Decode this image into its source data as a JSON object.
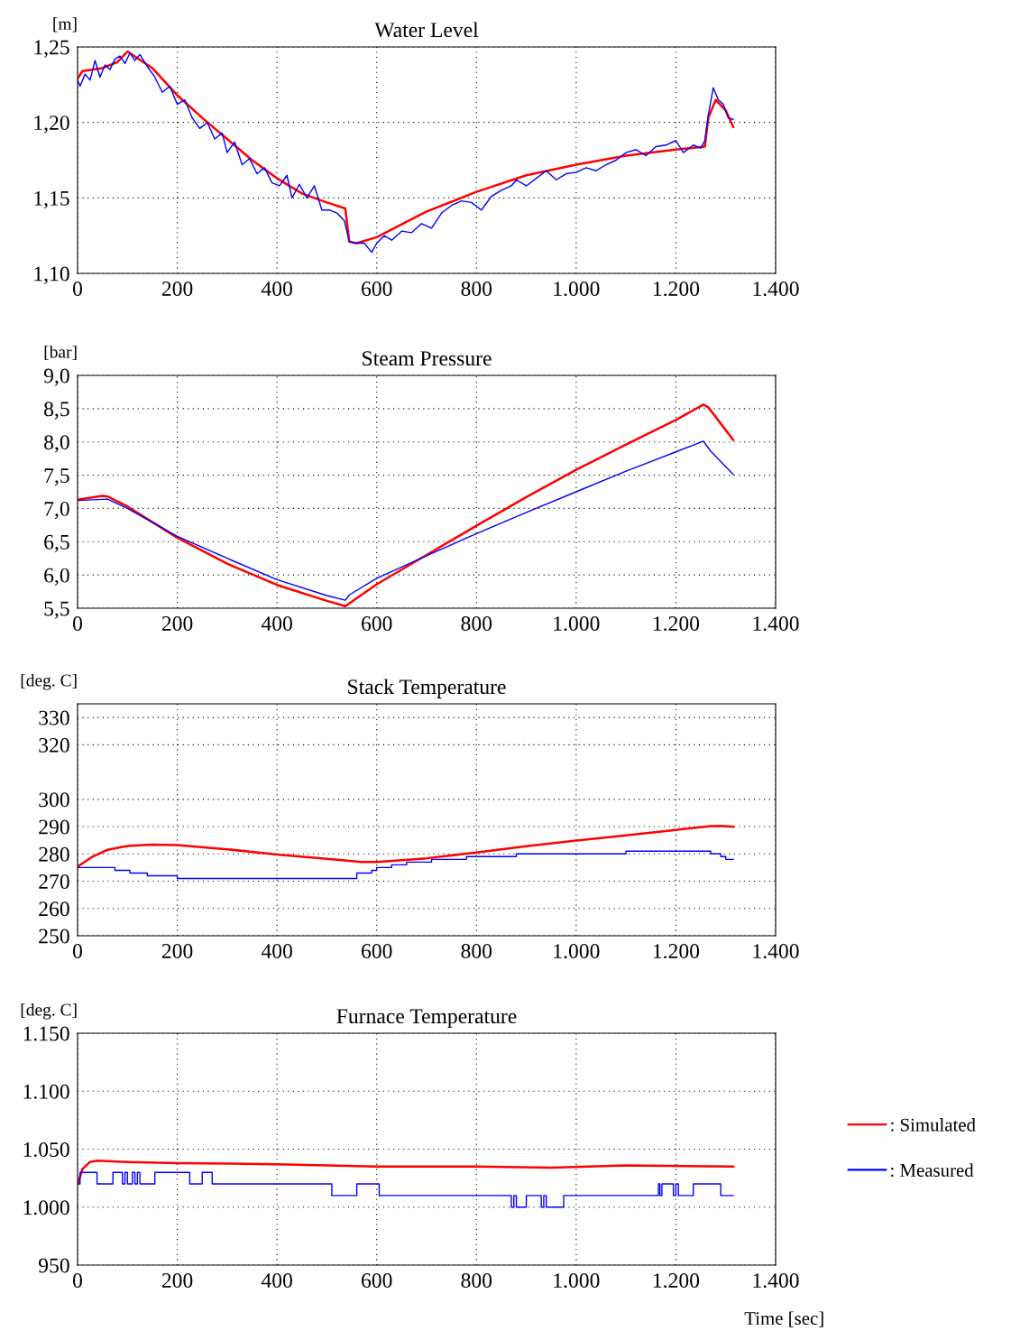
{
  "chart_data": [
    {
      "type": "line",
      "title": "Water Level",
      "ylabel": "[m]",
      "xlim": [
        0,
        1400
      ],
      "ylim": [
        1.1,
        1.25
      ],
      "grid": true,
      "line_style": "solid",
      "xticks": [
        0,
        200,
        400,
        600,
        800,
        {
          "value": 1000,
          "label": "1.000"
        },
        {
          "value": 1200,
          "label": "1.200"
        },
        {
          "value": 1400,
          "label": "1.400"
        }
      ],
      "yticks": [
        {
          "value": 1.1,
          "label": "1,10"
        },
        {
          "value": 1.15,
          "label": "1,15"
        },
        {
          "value": 1.2,
          "label": "1,20"
        },
        {
          "value": 1.25,
          "label": "1,25"
        }
      ],
      "series": [
        {
          "color": "#ff0000",
          "x": [
            0,
            10,
            50,
            80,
            100,
            150,
            200,
            250,
            300,
            350,
            400,
            450,
            500,
            537,
            545,
            560,
            600,
            700,
            800,
            900,
            1000,
            1100,
            1200,
            1258,
            1265,
            1280,
            1300,
            1315
          ],
          "values": [
            1.229,
            1.234,
            1.236,
            1.24,
            1.247,
            1.236,
            1.218,
            1.203,
            1.189,
            1.175,
            1.163,
            1.153,
            1.147,
            1.143,
            1.121,
            1.12,
            1.124,
            1.141,
            1.154,
            1.165,
            1.172,
            1.178,
            1.182,
            1.184,
            1.203,
            1.215,
            1.208,
            1.197
          ]
        },
        {
          "color": "#0000ff",
          "x": [
            0,
            5,
            15,
            25,
            35,
            45,
            55,
            65,
            75,
            85,
            95,
            105,
            115,
            125,
            140,
            155,
            170,
            185,
            200,
            215,
            230,
            245,
            260,
            275,
            290,
            300,
            315,
            330,
            345,
            360,
            375,
            390,
            405,
            420,
            430,
            445,
            460,
            475,
            490,
            505,
            520,
            535,
            545,
            560,
            575,
            590,
            600,
            615,
            630,
            650,
            670,
            690,
            710,
            730,
            750,
            770,
            790,
            810,
            830,
            850,
            870,
            880,
            900,
            920,
            940,
            960,
            980,
            1000,
            1020,
            1040,
            1060,
            1080,
            1100,
            1120,
            1140,
            1160,
            1180,
            1200,
            1215,
            1235,
            1250,
            1258,
            1265,
            1275,
            1285,
            1295,
            1305,
            1315
          ],
          "values": [
            1.228,
            1.224,
            1.232,
            1.228,
            1.241,
            1.23,
            1.238,
            1.235,
            1.242,
            1.244,
            1.239,
            1.246,
            1.241,
            1.245,
            1.237,
            1.23,
            1.22,
            1.224,
            1.212,
            1.215,
            1.203,
            1.196,
            1.2,
            1.189,
            1.193,
            1.18,
            1.187,
            1.172,
            1.176,
            1.166,
            1.17,
            1.16,
            1.158,
            1.165,
            1.15,
            1.159,
            1.15,
            1.158,
            1.142,
            1.142,
            1.14,
            1.135,
            1.121,
            1.12,
            1.12,
            1.114,
            1.12,
            1.125,
            1.122,
            1.128,
            1.127,
            1.133,
            1.13,
            1.14,
            1.145,
            1.148,
            1.147,
            1.142,
            1.151,
            1.155,
            1.158,
            1.162,
            1.158,
            1.163,
            1.168,
            1.162,
            1.166,
            1.167,
            1.17,
            1.168,
            1.172,
            1.175,
            1.18,
            1.182,
            1.178,
            1.184,
            1.185,
            1.188,
            1.18,
            1.185,
            1.183,
            1.188,
            1.205,
            1.223,
            1.215,
            1.212,
            1.203,
            1.202
          ]
        }
      ]
    },
    {
      "type": "line",
      "title": "Steam Pressure",
      "ylabel": "[bar]",
      "xlim": [
        0,
        1400
      ],
      "ylim": [
        5.5,
        9.0
      ],
      "grid": true,
      "line_style": "solid",
      "xticks": [
        0,
        200,
        400,
        600,
        800,
        {
          "value": 1000,
          "label": "1.000"
        },
        {
          "value": 1200,
          "label": "1.200"
        },
        {
          "value": 1400,
          "label": "1.400"
        }
      ],
      "yticks": [
        {
          "value": 5.5,
          "label": "5,5"
        },
        {
          "value": 6.0,
          "label": "6,0"
        },
        {
          "value": 6.5,
          "label": "6,5"
        },
        {
          "value": 7.0,
          "label": "7,0"
        },
        {
          "value": 7.5,
          "label": "7,5"
        },
        {
          "value": 8.0,
          "label": "8,0"
        },
        {
          "value": 8.5,
          "label": "8,5"
        },
        {
          "value": 9.0,
          "label": "9,0"
        }
      ],
      "series": [
        {
          "color": "#ff0000",
          "x": [
            0,
            50,
            60,
            100,
            200,
            300,
            400,
            500,
            537,
            600,
            700,
            800,
            900,
            1000,
            1100,
            1200,
            1255,
            1265,
            1315
          ],
          "values": [
            7.13,
            7.19,
            7.18,
            7.03,
            6.56,
            6.17,
            5.85,
            5.61,
            5.53,
            5.86,
            6.3,
            6.74,
            7.17,
            7.58,
            7.96,
            8.33,
            8.56,
            8.52,
            8.03
          ]
        },
        {
          "color": "#0000ff",
          "x": [
            0,
            60,
            100,
            200,
            300,
            400,
            500,
            537,
            545,
            600,
            700,
            800,
            900,
            1000,
            1100,
            1200,
            1255,
            1270,
            1315
          ],
          "values": [
            7.12,
            7.14,
            7.0,
            6.58,
            6.25,
            5.93,
            5.69,
            5.62,
            5.7,
            5.95,
            6.29,
            6.62,
            6.94,
            7.25,
            7.56,
            7.85,
            8.01,
            7.86,
            7.51
          ]
        }
      ]
    },
    {
      "type": "line",
      "title": "Stack Temperature",
      "ylabel": "[deg. C]",
      "xlim": [
        0,
        1400
      ],
      "ylim": [
        250,
        335
      ],
      "grid": true,
      "line_style": "solid",
      "xticks": [
        0,
        200,
        400,
        600,
        800,
        {
          "value": 1000,
          "label": "1.000"
        },
        {
          "value": 1200,
          "label": "1.200"
        },
        {
          "value": 1400,
          "label": "1.400"
        }
      ],
      "yticks": [
        250,
        260,
        270,
        280,
        290,
        300,
        320,
        330
      ],
      "series": [
        {
          "color": "#ff0000",
          "x": [
            0,
            30,
            60,
            100,
            150,
            200,
            300,
            400,
            500,
            570,
            600,
            700,
            800,
            900,
            1000,
            1100,
            1200,
            1270,
            1290,
            1315
          ],
          "values": [
            275.3,
            279,
            281.5,
            282.9,
            283.4,
            283.2,
            281.7,
            279.8,
            278.2,
            277.0,
            277.0,
            278.4,
            280.5,
            282.8,
            284.9,
            286.8,
            288.8,
            290.2,
            290.3,
            290.0
          ]
        },
        {
          "color": "#0000ff",
          "type": "step",
          "x": [
            0,
            75,
            105,
            140,
            200,
            560,
            590,
            600,
            630,
            660,
            710,
            780,
            880,
            1100,
            1270,
            1290,
            1300,
            1315
          ],
          "values": [
            275,
            274,
            273,
            272,
            271,
            273,
            274,
            275,
            276,
            277,
            278,
            279,
            280,
            281,
            280,
            279,
            278,
            278
          ]
        }
      ]
    },
    {
      "type": "line",
      "title": "Furnace Temperature",
      "ylabel": "[deg. C]",
      "xlabel": "Time [sec]",
      "xlim": [
        0,
        1400
      ],
      "ylim": [
        950,
        1150
      ],
      "grid": true,
      "line_style": "solid",
      "legend": "right",
      "xticks": [
        0,
        200,
        400,
        600,
        800,
        {
          "value": 1000,
          "label": "1.000"
        },
        {
          "value": 1200,
          "label": "1.200"
        },
        {
          "value": 1400,
          "label": "1.400"
        }
      ],
      "yticks": [
        950,
        {
          "value": 1000,
          "label": "1.000"
        },
        {
          "value": 1050,
          "label": "1.050"
        },
        {
          "value": 1100,
          "label": "1.100"
        },
        {
          "value": 1150,
          "label": "1.150"
        }
      ],
      "series": [
        {
          "name": ": Simulated",
          "color": "#ff0000",
          "x": [
            0,
            10,
            25,
            40,
            100,
            200,
            400,
            600,
            800,
            950,
            1100,
            1315
          ],
          "values": [
            1020,
            1033,
            1039,
            1040,
            1039,
            1038,
            1037,
            1035,
            1035,
            1034,
            1036,
            1035
          ]
        },
        {
          "name": ": Measured",
          "color": "#0000ff",
          "type": "step",
          "x": [
            0,
            5,
            39,
            71,
            90,
            95,
            100,
            110,
            115,
            120,
            125,
            155,
            225,
            250,
            270,
            510,
            560,
            605,
            870,
            875,
            880,
            900,
            930,
            935,
            940,
            975,
            1165,
            1168,
            1172,
            1195,
            1200,
            1205,
            1235,
            1290,
            1315
          ],
          "values": [
            1020,
            1030,
            1020,
            1030,
            1020,
            1030,
            1020,
            1030,
            1020,
            1030,
            1020,
            1030,
            1020,
            1030,
            1020,
            1010,
            1020,
            1010,
            1000,
            1010,
            1000,
            1010,
            1000,
            1010,
            1000,
            1010,
            1020,
            1010,
            1020,
            1010,
            1020,
            1010,
            1020,
            1010,
            1010
          ]
        }
      ]
    }
  ]
}
